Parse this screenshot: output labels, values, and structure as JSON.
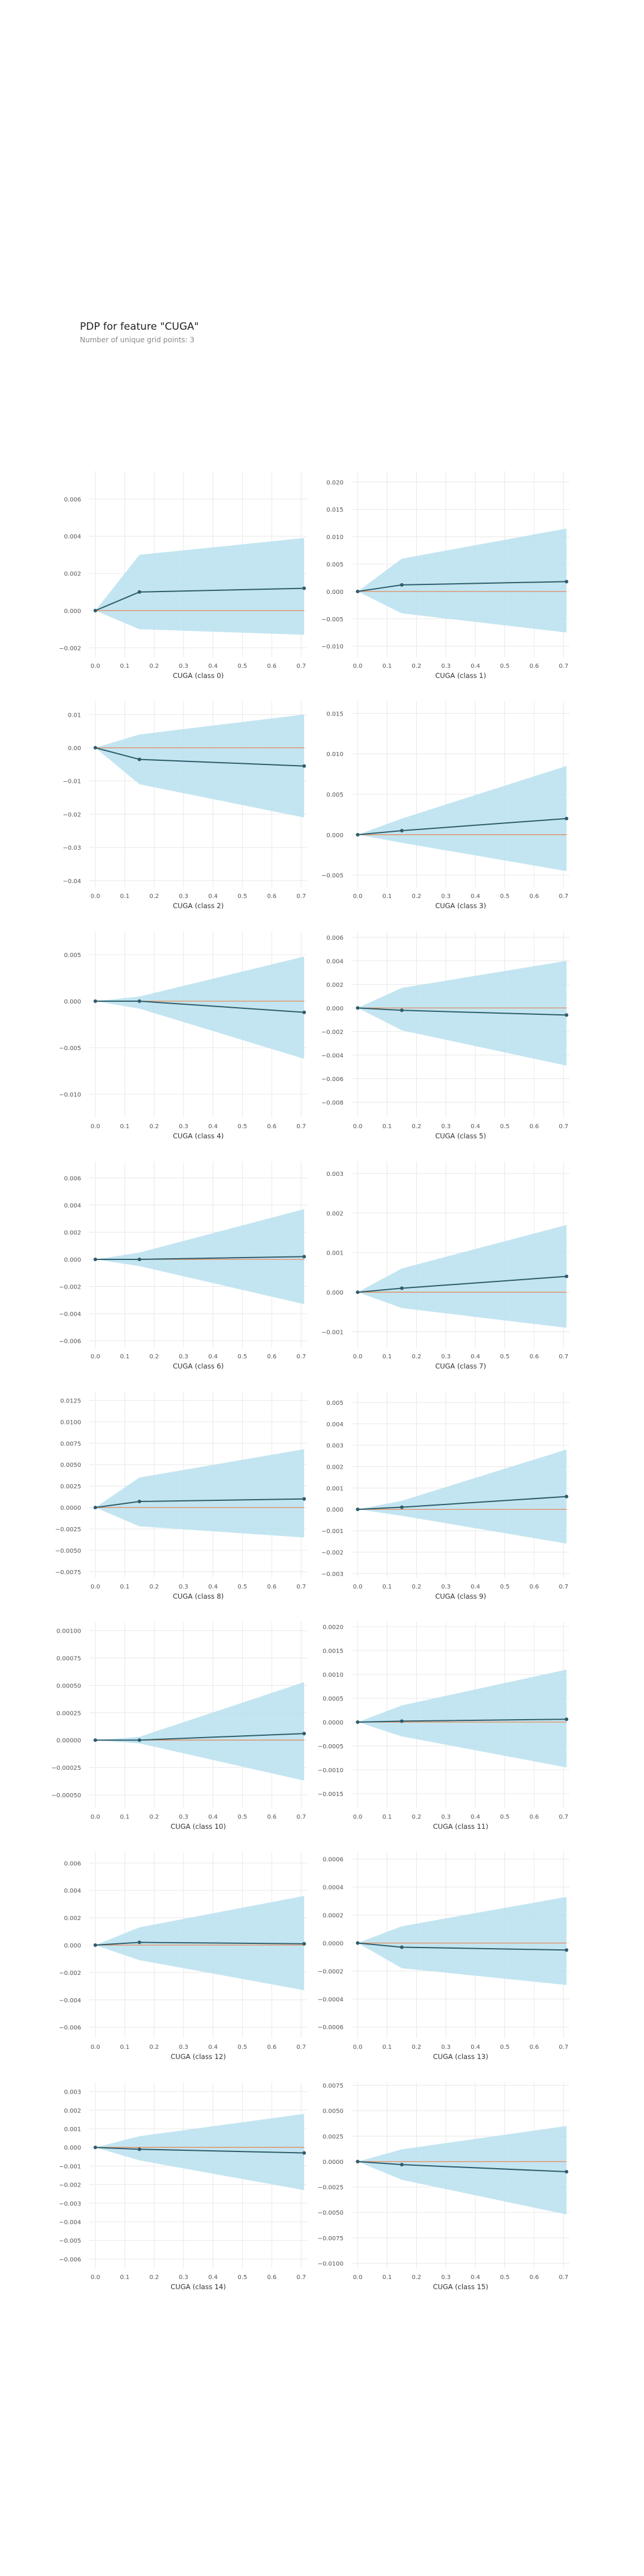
{
  "header": {
    "title": "PDP for feature \"CUGA\"",
    "subtitle": "Number of unique grid points: 3"
  },
  "colors": {
    "band": "#b9e0ee",
    "line": "#2e5d6b",
    "baseline": "#e48a5a",
    "grid": "#e8e8e8",
    "tick_text": "#555555",
    "axis_label": "#333333"
  },
  "chart_data": [
    {
      "type": "line",
      "xlabel": "CUGA (class 0)",
      "x": [
        0.0,
        0.15,
        0.71
      ],
      "values": [
        0.0,
        0.001,
        0.0012
      ],
      "upper": [
        0.0,
        0.003,
        0.0039
      ],
      "lower": [
        0.0,
        -0.001,
        -0.0013
      ],
      "ylim": [
        -0.0025,
        0.0075
      ],
      "yticks": [
        -0.002,
        0.0,
        0.002,
        0.004,
        0.006
      ],
      "ytick_labels": [
        "−0.002",
        "0.000",
        "0.002",
        "0.004",
        "0.006"
      ],
      "xticks": [
        0.0,
        0.1,
        0.2,
        0.3,
        0.4,
        0.5,
        0.6,
        0.7
      ],
      "xtick_labels": [
        "0.0",
        "0.1",
        "0.2",
        "0.3",
        "0.4",
        "0.5",
        "0.6",
        "0.7"
      ]
    },
    {
      "type": "line",
      "xlabel": "CUGA (class 1)",
      "x": [
        0.0,
        0.15,
        0.71
      ],
      "values": [
        0.0,
        0.0012,
        0.0018
      ],
      "upper": [
        0.0,
        0.006,
        0.0115
      ],
      "lower": [
        0.0,
        -0.004,
        -0.0075
      ],
      "ylim": [
        -0.012,
        0.022
      ],
      "yticks": [
        -0.01,
        -0.005,
        0.0,
        0.005,
        0.01,
        0.015,
        0.02
      ],
      "ytick_labels": [
        "−0.010",
        "−0.005",
        "0.000",
        "0.005",
        "0.010",
        "0.015",
        "0.020"
      ],
      "xticks": [
        0.0,
        0.1,
        0.2,
        0.3,
        0.4,
        0.5,
        0.6,
        0.7
      ],
      "xtick_labels": [
        "0.0",
        "0.1",
        "0.2",
        "0.3",
        "0.4",
        "0.5",
        "0.6",
        "0.7"
      ]
    },
    {
      "type": "line",
      "xlabel": "CUGA (class 2)",
      "x": [
        0.0,
        0.15,
        0.71
      ],
      "values": [
        0.0,
        -0.0035,
        -0.0055
      ],
      "upper": [
        0.0,
        0.004,
        0.01
      ],
      "lower": [
        0.0,
        -0.011,
        -0.021
      ],
      "ylim": [
        -0.042,
        0.014
      ],
      "yticks": [
        -0.04,
        -0.03,
        -0.02,
        -0.01,
        0.0,
        0.01
      ],
      "ytick_labels": [
        "−0.04",
        "−0.03",
        "−0.02",
        "−0.01",
        "0.00",
        "0.01"
      ],
      "xticks": [
        0.0,
        0.1,
        0.2,
        0.3,
        0.4,
        0.5,
        0.6,
        0.7
      ],
      "xtick_labels": [
        "0.0",
        "0.1",
        "0.2",
        "0.3",
        "0.4",
        "0.5",
        "0.6",
        "0.7"
      ]
    },
    {
      "type": "line",
      "xlabel": "CUGA (class 3)",
      "x": [
        0.0,
        0.15,
        0.71
      ],
      "values": [
        0.0,
        0.0005,
        0.002
      ],
      "upper": [
        0.0,
        0.002,
        0.0085
      ],
      "lower": [
        0.0,
        -0.001,
        -0.0045
      ],
      "ylim": [
        -0.0065,
        0.0165
      ],
      "yticks": [
        -0.005,
        0.0,
        0.005,
        0.01,
        0.015
      ],
      "ytick_labels": [
        "−0.005",
        "0.000",
        "0.005",
        "0.010",
        "0.015"
      ],
      "xticks": [
        0.0,
        0.1,
        0.2,
        0.3,
        0.4,
        0.5,
        0.6,
        0.7
      ],
      "xtick_labels": [
        "0.0",
        "0.1",
        "0.2",
        "0.3",
        "0.4",
        "0.5",
        "0.6",
        "0.7"
      ]
    },
    {
      "type": "line",
      "xlabel": "CUGA (class 4)",
      "x": [
        0.0,
        0.15,
        0.71
      ],
      "values": [
        0.0,
        0.0,
        -0.0012
      ],
      "upper": [
        0.0,
        0.0005,
        0.0048
      ],
      "lower": [
        0.0,
        -0.0008,
        -0.0062
      ],
      "ylim": [
        -0.0125,
        0.0075
      ],
      "yticks": [
        -0.01,
        -0.005,
        0.0,
        0.005
      ],
      "ytick_labels": [
        "−0.010",
        "−0.005",
        "0.000",
        "0.005"
      ],
      "xticks": [
        0.0,
        0.1,
        0.2,
        0.3,
        0.4,
        0.5,
        0.6,
        0.7
      ],
      "xtick_labels": [
        "0.0",
        "0.1",
        "0.2",
        "0.3",
        "0.4",
        "0.5",
        "0.6",
        "0.7"
      ]
    },
    {
      "type": "line",
      "xlabel": "CUGA (class 5)",
      "x": [
        0.0,
        0.15,
        0.71
      ],
      "values": [
        0.0,
        -0.0002,
        -0.0006
      ],
      "upper": [
        0.0,
        0.0017,
        0.004
      ],
      "lower": [
        0.0,
        -0.0019,
        -0.0049
      ],
      "ylim": [
        -0.0093,
        0.0065
      ],
      "yticks": [
        -0.008,
        -0.006,
        -0.004,
        -0.002,
        0.0,
        0.002,
        0.004,
        0.006
      ],
      "ytick_labels": [
        "−0.008",
        "−0.006",
        "−0.004",
        "−0.002",
        "0.000",
        "0.002",
        "0.004",
        "0.006"
      ],
      "xticks": [
        0.0,
        0.1,
        0.2,
        0.3,
        0.4,
        0.5,
        0.6,
        0.7
      ],
      "xtick_labels": [
        "0.0",
        "0.1",
        "0.2",
        "0.3",
        "0.4",
        "0.5",
        "0.6",
        "0.7"
      ]
    },
    {
      "type": "line",
      "xlabel": "CUGA (class 6)",
      "x": [
        0.0,
        0.15,
        0.71
      ],
      "values": [
        0.0,
        0.0,
        0.0002
      ],
      "upper": [
        0.0,
        0.0005,
        0.0037
      ],
      "lower": [
        0.0,
        -0.0005,
        -0.0033
      ],
      "ylim": [
        -0.0065,
        0.0072
      ],
      "yticks": [
        -0.006,
        -0.004,
        -0.002,
        0.0,
        0.002,
        0.004,
        0.006
      ],
      "ytick_labels": [
        "−0.006",
        "−0.004",
        "−0.002",
        "0.000",
        "0.002",
        "0.004",
        "0.006"
      ],
      "xticks": [
        0.0,
        0.1,
        0.2,
        0.3,
        0.4,
        0.5,
        0.6,
        0.7
      ],
      "xtick_labels": [
        "0.0",
        "0.1",
        "0.2",
        "0.3",
        "0.4",
        "0.5",
        "0.6",
        "0.7"
      ]
    },
    {
      "type": "line",
      "xlabel": "CUGA (class 7)",
      "x": [
        0.0,
        0.15,
        0.71
      ],
      "values": [
        0.0,
        0.0001,
        0.0004
      ],
      "upper": [
        0.0,
        0.0006,
        0.0017
      ],
      "lower": [
        0.0,
        -0.0004,
        -0.0009
      ],
      "ylim": [
        -0.0014,
        0.0033
      ],
      "yticks": [
        -0.001,
        0.0,
        0.001,
        0.002,
        0.003
      ],
      "ytick_labels": [
        "−0.001",
        "0.000",
        "0.001",
        "0.002",
        "0.003"
      ],
      "xticks": [
        0.0,
        0.1,
        0.2,
        0.3,
        0.4,
        0.5,
        0.6,
        0.7
      ],
      "xtick_labels": [
        "0.0",
        "0.1",
        "0.2",
        "0.3",
        "0.4",
        "0.5",
        "0.6",
        "0.7"
      ]
    },
    {
      "type": "line",
      "xlabel": "CUGA (class 8)",
      "x": [
        0.0,
        0.15,
        0.71
      ],
      "values": [
        0.0,
        0.0007,
        0.001
      ],
      "upper": [
        0.0,
        0.0035,
        0.0068
      ],
      "lower": [
        0.0,
        -0.0022,
        -0.0035
      ],
      "ylim": [
        -0.0082,
        0.0135
      ],
      "yticks": [
        -0.0075,
        -0.005,
        -0.0025,
        0.0,
        0.0025,
        0.005,
        0.0075,
        0.01,
        0.0125
      ],
      "ytick_labels": [
        "−0.0075",
        "−0.0050",
        "−0.0025",
        "0.0000",
        "0.0025",
        "0.0050",
        "0.0075",
        "0.0100",
        "0.0125"
      ],
      "xticks": [
        0.0,
        0.1,
        0.2,
        0.3,
        0.4,
        0.5,
        0.6,
        0.7
      ],
      "xtick_labels": [
        "0.0",
        "0.1",
        "0.2",
        "0.3",
        "0.4",
        "0.5",
        "0.6",
        "0.7"
      ]
    },
    {
      "type": "line",
      "xlabel": "CUGA (class 9)",
      "x": [
        0.0,
        0.15,
        0.71
      ],
      "values": [
        0.0,
        0.0001,
        0.0006
      ],
      "upper": [
        0.0,
        0.0004,
        0.0028
      ],
      "lower": [
        0.0,
        -0.0003,
        -0.0016
      ],
      "ylim": [
        -0.0032,
        0.0055
      ],
      "yticks": [
        -0.003,
        -0.002,
        -0.001,
        0.0,
        0.001,
        0.002,
        0.003,
        0.004,
        0.005
      ],
      "ytick_labels": [
        "−0.003",
        "−0.002",
        "−0.001",
        "0.000",
        "0.001",
        "0.002",
        "0.003",
        "0.004",
        "0.005"
      ],
      "xticks": [
        0.0,
        0.1,
        0.2,
        0.3,
        0.4,
        0.5,
        0.6,
        0.7
      ],
      "xtick_labels": [
        "0.0",
        "0.1",
        "0.2",
        "0.3",
        "0.4",
        "0.5",
        "0.6",
        "0.7"
      ]
    },
    {
      "type": "line",
      "xlabel": "CUGA (class 10)",
      "x": [
        0.0,
        0.15,
        0.71
      ],
      "values": [
        0.0,
        0.0,
        6e-05
      ],
      "upper": [
        0.0,
        3e-05,
        0.00053
      ],
      "lower": [
        0.0,
        -3e-05,
        -0.00037
      ],
      "ylim": [
        -0.00062,
        0.00108
      ],
      "yticks": [
        -0.0005,
        -0.00025,
        0.0,
        0.00025,
        0.0005,
        0.00075,
        0.001
      ],
      "ytick_labels": [
        "−0.00050",
        "−0.00025",
        "0.00000",
        "0.00025",
        "0.00050",
        "0.00075",
        "0.00100"
      ],
      "xticks": [
        0.0,
        0.1,
        0.2,
        0.3,
        0.4,
        0.5,
        0.6,
        0.7
      ],
      "xtick_labels": [
        "0.0",
        "0.1",
        "0.2",
        "0.3",
        "0.4",
        "0.5",
        "0.6",
        "0.7"
      ]
    },
    {
      "type": "line",
      "xlabel": "CUGA (class 11)",
      "x": [
        0.0,
        0.15,
        0.71
      ],
      "values": [
        0.0,
        2e-05,
        6e-05
      ],
      "upper": [
        0.0,
        0.00035,
        0.0011
      ],
      "lower": [
        0.0,
        -0.0003,
        -0.00095
      ],
      "ylim": [
        -0.0018,
        0.0021
      ],
      "yticks": [
        -0.0015,
        -0.001,
        -0.0005,
        0.0,
        0.0005,
        0.001,
        0.0015,
        0.002
      ],
      "ytick_labels": [
        "−0.0015",
        "−0.0010",
        "−0.0005",
        "0.0000",
        "0.0005",
        "0.0010",
        "0.0015",
        "0.0020"
      ],
      "xticks": [
        0.0,
        0.1,
        0.2,
        0.3,
        0.4,
        0.5,
        0.6,
        0.7
      ],
      "xtick_labels": [
        "0.0",
        "0.1",
        "0.2",
        "0.3",
        "0.4",
        "0.5",
        "0.6",
        "0.7"
      ]
    },
    {
      "type": "line",
      "xlabel": "CUGA (class 12)",
      "x": [
        0.0,
        0.15,
        0.71
      ],
      "values": [
        0.0,
        0.0002,
        0.0001
      ],
      "upper": [
        0.0,
        0.0013,
        0.0036
      ],
      "lower": [
        0.0,
        -0.0011,
        -0.0033
      ],
      "ylim": [
        -0.0068,
        0.0068
      ],
      "yticks": [
        -0.006,
        -0.004,
        -0.002,
        0.0,
        0.002,
        0.004,
        0.006
      ],
      "ytick_labels": [
        "−0.006",
        "−0.004",
        "−0.002",
        "0.000",
        "0.002",
        "0.004",
        "0.006"
      ],
      "xticks": [
        0.0,
        0.1,
        0.2,
        0.3,
        0.4,
        0.5,
        0.6,
        0.7
      ],
      "xtick_labels": [
        "0.0",
        "0.1",
        "0.2",
        "0.3",
        "0.4",
        "0.5",
        "0.6",
        "0.7"
      ]
    },
    {
      "type": "line",
      "xlabel": "CUGA (class 13)",
      "x": [
        0.0,
        0.15,
        0.71
      ],
      "values": [
        0.0,
        -3e-05,
        -5e-05
      ],
      "upper": [
        0.0,
        0.00012,
        0.00033
      ],
      "lower": [
        0.0,
        -0.00018,
        -0.0003
      ],
      "ylim": [
        -0.00068,
        0.00065
      ],
      "yticks": [
        -0.0006,
        -0.0004,
        -0.0002,
        0.0,
        0.0002,
        0.0004,
        0.0006
      ],
      "ytick_labels": [
        "−0.0006",
        "−0.0004",
        "−0.0002",
        "0.0000",
        "0.0002",
        "0.0004",
        "0.0006"
      ],
      "xticks": [
        0.0,
        0.1,
        0.2,
        0.3,
        0.4,
        0.5,
        0.6,
        0.7
      ],
      "xtick_labels": [
        "0.0",
        "0.1",
        "0.2",
        "0.3",
        "0.4",
        "0.5",
        "0.6",
        "0.7"
      ]
    },
    {
      "type": "line",
      "xlabel": "CUGA (class 14)",
      "x": [
        0.0,
        0.15,
        0.71
      ],
      "values": [
        0.0,
        -0.0001,
        -0.0003
      ],
      "upper": [
        0.0,
        0.0006,
        0.0018
      ],
      "lower": [
        0.0,
        -0.0007,
        -0.0023
      ],
      "ylim": [
        -0.0065,
        0.0035
      ],
      "yticks": [
        -0.006,
        -0.005,
        -0.004,
        -0.003,
        -0.002,
        -0.001,
        0.0,
        0.001,
        0.002,
        0.003
      ],
      "ytick_labels": [
        "−0.006",
        "−0.005",
        "−0.004",
        "−0.003",
        "−0.002",
        "−0.001",
        "0.000",
        "0.001",
        "0.002",
        "0.003"
      ],
      "xticks": [
        0.0,
        0.1,
        0.2,
        0.3,
        0.4,
        0.5,
        0.6,
        0.7
      ],
      "xtick_labels": [
        "0.0",
        "0.1",
        "0.2",
        "0.3",
        "0.4",
        "0.5",
        "0.6",
        "0.7"
      ]
    },
    {
      "type": "line",
      "xlabel": "CUGA (class 15)",
      "x": [
        0.0,
        0.15,
        0.71
      ],
      "values": [
        0.0,
        -0.0003,
        -0.001
      ],
      "upper": [
        0.0,
        0.0012,
        0.0035
      ],
      "lower": [
        0.0,
        -0.0018,
        -0.0052
      ],
      "ylim": [
        -0.0105,
        0.0078
      ],
      "yticks": [
        -0.01,
        -0.0075,
        -0.005,
        -0.0025,
        0.0,
        0.0025,
        0.005,
        0.0075
      ],
      "ytick_labels": [
        "−0.0100",
        "−0.0075",
        "−0.0050",
        "−0.0025",
        "0.0000",
        "0.0025",
        "0.0050",
        "0.0075"
      ],
      "xticks": [
        0.0,
        0.1,
        0.2,
        0.3,
        0.4,
        0.5,
        0.6,
        0.7
      ],
      "xtick_labels": [
        "0.0",
        "0.1",
        "0.2",
        "0.3",
        "0.4",
        "0.5",
        "0.6",
        "0.7"
      ]
    }
  ]
}
